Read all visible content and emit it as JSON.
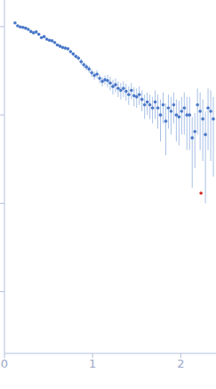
{
  "chart_data": {
    "type": "scatter",
    "log": "y",
    "tick_labels": "x",
    "grid": false,
    "marker": "circle",
    "xlim": [
      0,
      2.4
    ],
    "xticks": [
      0,
      1,
      2
    ],
    "ylim": [
      0.0002,
      2
    ],
    "yticks": [
      0.001,
      0.01,
      0.1,
      1
    ],
    "series": [
      {
        "color": "#4a78c8",
        "x": [
          0.12,
          0.15,
          0.18,
          0.21,
          0.24,
          0.27,
          0.3,
          0.33,
          0.36,
          0.39,
          0.42,
          0.45,
          0.48,
          0.51,
          0.54,
          0.57,
          0.6,
          0.63,
          0.66,
          0.69,
          0.72,
          0.75,
          0.78,
          0.81,
          0.84,
          0.87,
          0.9,
          0.93,
          0.96,
          0.99,
          1.02,
          1.05,
          1.08,
          1.11,
          1.14,
          1.17,
          1.2,
          1.23,
          1.26,
          1.29,
          1.32,
          1.35,
          1.38,
          1.41,
          1.44,
          1.47,
          1.5,
          1.53,
          1.56,
          1.59,
          1.62,
          1.65,
          1.68,
          1.71,
          1.74,
          1.77,
          1.8,
          1.83,
          1.86,
          1.89,
          1.92,
          1.95,
          1.98,
          2.01,
          2.04,
          2.07,
          2.1,
          2.13,
          2.16,
          2.19,
          2.22,
          2.25,
          2.28,
          2.31,
          2.34,
          2.37
        ],
        "values": [
          1.1,
          1.02,
          0.99,
          0.98,
          0.96,
          0.93,
          0.88,
          0.85,
          0.87,
          0.82,
          0.75,
          0.77,
          0.72,
          0.7,
          0.69,
          0.66,
          0.62,
          0.6,
          0.58,
          0.57,
          0.56,
          0.52,
          0.49,
          0.46,
          0.44,
          0.4,
          0.37,
          0.35,
          0.33,
          0.3,
          0.28,
          0.29,
          0.26,
          0.24,
          0.25,
          0.245,
          0.23,
          0.21,
          0.22,
          0.2,
          0.19,
          0.2,
          0.185,
          0.17,
          0.19,
          0.165,
          0.16,
          0.17,
          0.15,
          0.13,
          0.14,
          0.13,
          0.12,
          0.14,
          0.12,
          0.1,
          0.13,
          0.085,
          0.12,
          0.11,
          0.13,
          0.1,
          0.095,
          0.11,
          0.12,
          0.1,
          0.1,
          0.055,
          0.065,
          0.13,
          0.11,
          0.09,
          0.06,
          0.12,
          0.11,
          0.09
        ],
        "errors": [
          0.02,
          0.02,
          0.02,
          0.02,
          0.02,
          0.02,
          0.02,
          0.02,
          0.02,
          0.02,
          0.02,
          0.02,
          0.02,
          0.02,
          0.02,
          0.02,
          0.02,
          0.02,
          0.02,
          0.02,
          0.02,
          0.02,
          0.02,
          0.02,
          0.03,
          0.03,
          0.03,
          0.03,
          0.03,
          0.03,
          0.03,
          0.03,
          0.03,
          0.03,
          0.03,
          0.04,
          0.04,
          0.04,
          0.04,
          0.04,
          0.04,
          0.04,
          0.04,
          0.04,
          0.04,
          0.04,
          0.04,
          0.04,
          0.04,
          0.04,
          0.04,
          0.04,
          0.04,
          0.05,
          0.05,
          0.05,
          0.05,
          0.05,
          0.05,
          0.05,
          0.05,
          0.05,
          0.05,
          0.05,
          0.06,
          0.06,
          0.06,
          0.04,
          0.04,
          0.07,
          0.07,
          0.06,
          0.05,
          0.08,
          0.08,
          0.07
        ]
      },
      {
        "color": "#d62728",
        "x": [
          2.23
        ],
        "values": [
          0.013
        ]
      }
    ]
  }
}
